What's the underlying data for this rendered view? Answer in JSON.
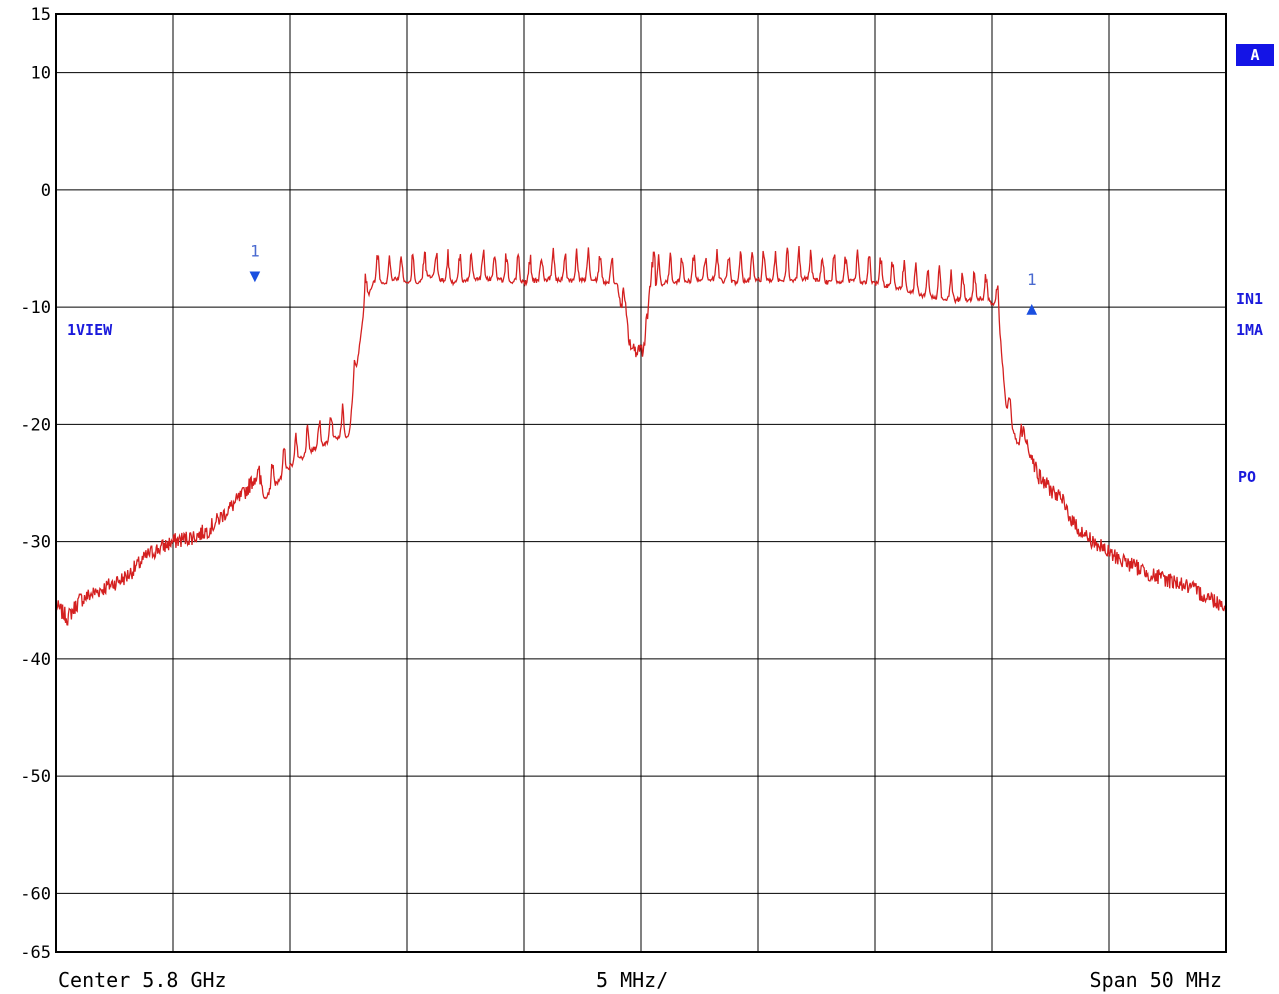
{
  "chart_data": {
    "type": "line",
    "title": "",
    "xlabel": "",
    "ylabel": "",
    "x_unit": "MHz offset from center",
    "xlim": [
      -25,
      25
    ],
    "ylim": [
      -65,
      15
    ],
    "y_ticks": [
      15,
      10,
      0,
      -10,
      -20,
      -30,
      -40,
      -50,
      -60,
      -65
    ],
    "grid": true,
    "series": [
      {
        "color": "#d42020",
        "x": [
          -25,
          -24.5,
          -24,
          -23,
          -22,
          -21,
          -20,
          -19,
          -18.5,
          -18,
          -17,
          -16.5,
          -16,
          -15,
          -14,
          -13,
          -12.5,
          -11.8,
          -11.7,
          -11.5,
          -11.3,
          -11.0,
          -10.5,
          -10,
          -9.5,
          -9,
          -8,
          -7,
          -6,
          -5,
          -4,
          -3,
          -2,
          -1,
          -0.7,
          -0.5,
          -0.3,
          -0.1,
          0.1,
          0.3,
          0.5,
          1,
          2,
          3,
          4,
          5,
          6,
          7,
          8,
          9,
          10,
          11,
          12,
          13,
          14,
          14.5,
          15.2,
          15.4,
          15.6,
          16,
          16.5,
          17,
          18,
          18.5,
          19,
          20,
          21,
          22,
          23,
          24,
          25
        ],
        "y": [
          -35.5,
          -36.5,
          -35,
          -34,
          -33,
          -31,
          -30,
          -29.5,
          -29,
          -28,
          -26,
          -24.5,
          -23.5,
          -21,
          -19.5,
          -18.5,
          -18.5,
          -7,
          -7,
          -5.5,
          -5.2,
          -5.5,
          -5.0,
          -5.3,
          -5.2,
          -4.8,
          -5.4,
          -5.0,
          -5.1,
          -5.3,
          -5.0,
          -5.2,
          -5.0,
          -5.6,
          -9.5,
          -13.0,
          -13.8,
          -13.5,
          -13.6,
          -10.0,
          -6.0,
          -5.3,
          -5.2,
          -5.0,
          -5.3,
          -5.1,
          -5.2,
          -5.0,
          -5.3,
          -5.2,
          -5.4,
          -5.8,
          -6.4,
          -6.8,
          -6.8,
          -6.6,
          -7.2,
          -11.0,
          -16.0,
          -18.5,
          -21.5,
          -24.5,
          -26.5,
          -28.5,
          -29.5,
          -31.0,
          -32.0,
          -33.0,
          -33.5,
          -34.5,
          -35.5
        ]
      }
    ],
    "markers": [
      {
        "label": "1",
        "x": -16.5,
        "y": -7.2,
        "symbol": "▼"
      },
      {
        "label": "1",
        "x": 16.7,
        "y": -10.0,
        "symbol": "▲"
      }
    ]
  },
  "footer": {
    "center": "Center 5.8 GHz",
    "div": "5 MHz/",
    "span": "Span 50 MHz"
  },
  "labels": {
    "trace_view": "1VIEW",
    "badge": "A",
    "in1": "IN1",
    "ma": "1MA",
    "po": "PO"
  }
}
